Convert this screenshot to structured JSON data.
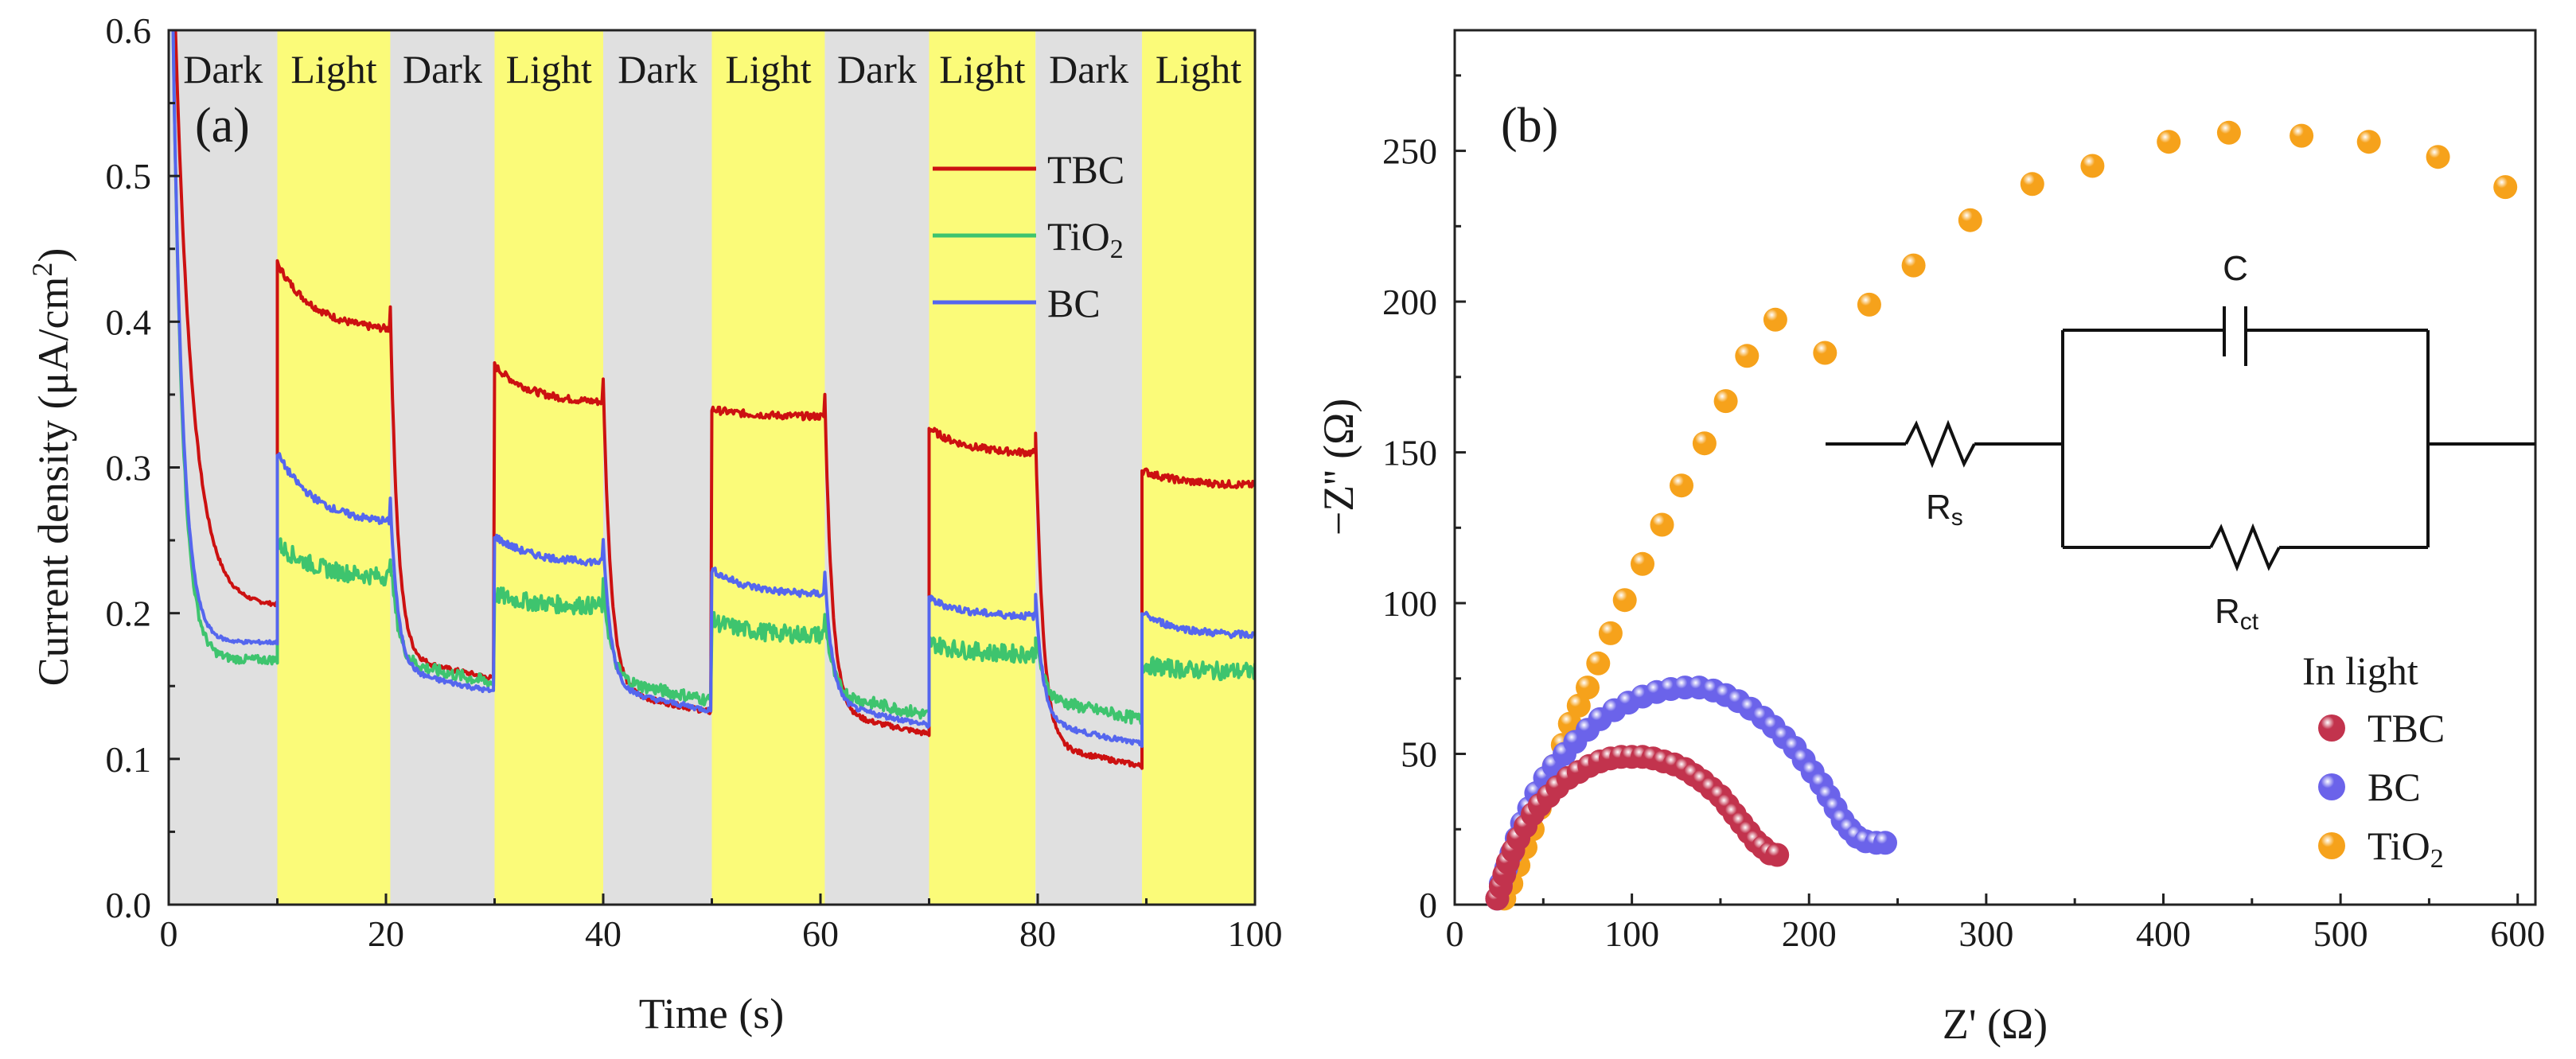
{
  "chart_data": [
    {
      "type": "line",
      "panel_label": "(a)",
      "xlabel": "Time (s)",
      "ylabel": "Current density (μA/cm²)",
      "ylabel_parts": {
        "main": "Current density (μA/cm",
        "sup": "2",
        "end": ")"
      },
      "xlim": [
        0,
        100
      ],
      "ylim": [
        0,
        0.6
      ],
      "xticks": [
        "0",
        "20",
        "40",
        "60",
        "80",
        "100"
      ],
      "xtick_values": [
        0,
        20,
        40,
        60,
        80,
        100
      ],
      "yticks": [
        "0.0",
        "0.1",
        "0.2",
        "0.3",
        "0.4",
        "0.5",
        "0.6"
      ],
      "ytick_values": [
        0,
        0.1,
        0.2,
        0.3,
        0.4,
        0.5,
        0.6
      ],
      "bands": [
        {
          "label": "Dark",
          "start": 0,
          "end": 10,
          "color": "#e0e0e0"
        },
        {
          "label": "Light",
          "start": 10,
          "end": 20.4,
          "color": "#fbfb79"
        },
        {
          "label": "Dark",
          "start": 20.4,
          "end": 30,
          "color": "#e0e0e0"
        },
        {
          "label": "Light",
          "start": 30,
          "end": 40,
          "color": "#fbfb79"
        },
        {
          "label": "Dark",
          "start": 40,
          "end": 50,
          "color": "#e0e0e0"
        },
        {
          "label": "Light",
          "start": 50,
          "end": 60.4,
          "color": "#fbfb79"
        },
        {
          "label": "Dark",
          "start": 60.4,
          "end": 70,
          "color": "#e0e0e0"
        },
        {
          "label": "Light",
          "start": 70,
          "end": 79.8,
          "color": "#fbfb79"
        },
        {
          "label": "Dark",
          "start": 79.8,
          "end": 89.6,
          "color": "#e0e0e0"
        },
        {
          "label": "Light",
          "start": 89.6,
          "end": 100,
          "color": "#fbfb79"
        }
      ],
      "series": [
        {
          "name": "TBC",
          "color": "#cc1111",
          "start_value": 0.6,
          "on": [
            {
              "t_on": 10,
              "t_off": 20.4,
              "peak": 0.44,
              "end": 0.395,
              "dark_end": 0.205
            },
            {
              "t_on": 30,
              "t_off": 40,
              "peak": 0.37,
              "end": 0.345,
              "dark_end": 0.155
            },
            {
              "t_on": 50,
              "t_off": 60.4,
              "peak": 0.34,
              "end": 0.335,
              "dark_end": 0.132
            },
            {
              "t_on": 70,
              "t_off": 79.8,
              "peak": 0.327,
              "end": 0.31,
              "dark_end": 0.117
            },
            {
              "t_on": 89.6,
              "t_off": 100,
              "peak": 0.298,
              "end": 0.288,
              "dark_end": 0.095
            }
          ]
        },
        {
          "name": "TiO2",
          "color": "#3ec46e",
          "start_value": 0.6,
          "on": [
            {
              "t_on": 10,
              "t_off": 20.4,
              "peak": 0.248,
              "end": 0.225,
              "dark_end": 0.168
            },
            {
              "t_on": 30,
              "t_off": 40,
              "peak": 0.213,
              "end": 0.205,
              "dark_end": 0.152
            },
            {
              "t_on": 50,
              "t_off": 60.4,
              "peak": 0.195,
              "end": 0.185,
              "dark_end": 0.14
            },
            {
              "t_on": 70,
              "t_off": 79.8,
              "peak": 0.18,
              "end": 0.172,
              "dark_end": 0.13
            },
            {
              "t_on": 89.6,
              "t_off": 100,
              "peak": 0.165,
              "end": 0.16,
              "dark_end": 0.127
            }
          ]
        },
        {
          "name": "BC",
          "color": "#5566ee",
          "start_value": 0.6,
          "on": [
            {
              "t_on": 10,
              "t_off": 20.4,
              "peak": 0.31,
              "end": 0.263,
              "dark_end": 0.18
            },
            {
              "t_on": 30,
              "t_off": 40,
              "peak": 0.253,
              "end": 0.235,
              "dark_end": 0.146
            },
            {
              "t_on": 50,
              "t_off": 60.4,
              "peak": 0.23,
              "end": 0.213,
              "dark_end": 0.133
            },
            {
              "t_on": 70,
              "t_off": 79.8,
              "peak": 0.21,
              "end": 0.198,
              "dark_end": 0.123
            },
            {
              "t_on": 89.6,
              "t_off": 100,
              "peak": 0.2,
              "end": 0.185,
              "dark_end": 0.11
            }
          ]
        }
      ],
      "legend": [
        {
          "label": "TBC",
          "sub": "",
          "color": "#cc1111"
        },
        {
          "label": "TiO",
          "sub": "2",
          "color": "#3ec46e"
        },
        {
          "label": "BC",
          "sub": "",
          "color": "#5566ee"
        }
      ],
      "legend_position": "upper-right"
    },
    {
      "type": "scatter",
      "panel_label": "(b)",
      "xlabel": "Z' (Ω)",
      "ylabel": "−Z'' (Ω)",
      "xlim": [
        0,
        610
      ],
      "ylim": [
        0,
        290
      ],
      "xticks": [
        "0",
        "100",
        "200",
        "300",
        "400",
        "500",
        "600"
      ],
      "xtick_values": [
        0,
        100,
        200,
        300,
        400,
        500,
        600
      ],
      "yticks": [
        "0",
        "50",
        "100",
        "150",
        "200",
        "250"
      ],
      "ytick_values": [
        0,
        50,
        100,
        150,
        200,
        250
      ],
      "legend_title": "In light",
      "legend": [
        {
          "label": "TBC",
          "sub": "",
          "color": "#c2334d"
        },
        {
          "label": "BC",
          "sub": "",
          "color": "#6b63ea"
        },
        {
          "label": "TiO",
          "sub": "2",
          "color": "#f6a21b"
        }
      ],
      "series": [
        {
          "name": "TBC",
          "color": "#c2334d",
          "points": [
            [
              24,
              2
            ],
            [
              26,
              6
            ],
            [
              28,
              10
            ],
            [
              30,
              14
            ],
            [
              33,
              18
            ],
            [
              36,
              22
            ],
            [
              40,
              26
            ],
            [
              44,
              30
            ],
            [
              48,
              33
            ],
            [
              53,
              36
            ],
            [
              58,
              39
            ],
            [
              64,
              42
            ],
            [
              70,
              44
            ],
            [
              76,
              46
            ],
            [
              82,
              47.5
            ],
            [
              88,
              48.5
            ],
            [
              94,
              49
            ],
            [
              100,
              49
            ],
            [
              106,
              49
            ],
            [
              112,
              48.5
            ],
            [
              118,
              47.5
            ],
            [
              124,
              46.5
            ],
            [
              130,
              45
            ],
            [
              135,
              43
            ],
            [
              140,
              41
            ],
            [
              145,
              38.5
            ],
            [
              150,
              36
            ],
            [
              154,
              33
            ],
            [
              158,
              30
            ],
            [
              162,
              27
            ],
            [
              166,
              24
            ],
            [
              170,
              21
            ],
            [
              174,
              19
            ],
            [
              178,
              17
            ],
            [
              182,
              16.5
            ]
          ]
        },
        {
          "name": "BC",
          "color": "#6b63ea",
          "points": [
            [
              24,
              2
            ],
            [
              26,
              7
            ],
            [
              29,
              12
            ],
            [
              32,
              17
            ],
            [
              35,
              22
            ],
            [
              38,
              27
            ],
            [
              42,
              32
            ],
            [
              46,
              37
            ],
            [
              51,
              42
            ],
            [
              56,
              46
            ],
            [
              62,
              50
            ],
            [
              68,
              54
            ],
            [
              75,
              58
            ],
            [
              82,
              61.5
            ],
            [
              90,
              64.5
            ],
            [
              98,
              67
            ],
            [
              106,
              69
            ],
            [
              114,
              70.5
            ],
            [
              122,
              71.5
            ],
            [
              130,
              72
            ],
            [
              138,
              72
            ],
            [
              146,
              71
            ],
            [
              153,
              69.5
            ],
            [
              160,
              67.5
            ],
            [
              167,
              65
            ],
            [
              174,
              62
            ],
            [
              180,
              59
            ],
            [
              186,
              55.5
            ],
            [
              192,
              52
            ],
            [
              197,
              48
            ],
            [
              202,
              44
            ],
            [
              207,
              40
            ],
            [
              211,
              36
            ],
            [
              215,
              32
            ],
            [
              219,
              28
            ],
            [
              223,
              25
            ],
            [
              227,
              22.5
            ],
            [
              232,
              21
            ],
            [
              238,
              20.5
            ],
            [
              243,
              20.5
            ]
          ]
        },
        {
          "name": "TiO2",
          "color": "#f6a21b",
          "points": [
            [
              28,
              2
            ],
            [
              32,
              7
            ],
            [
              36,
              13
            ],
            [
              40,
              19
            ],
            [
              44,
              25
            ],
            [
              48,
              32
            ],
            [
              52,
              39
            ],
            [
              56,
              46
            ],
            [
              61,
              53
            ],
            [
              65,
              60
            ],
            [
              70,
              66
            ],
            [
              75,
              72
            ],
            [
              81,
              80
            ],
            [
              88,
              90
            ],
            [
              96,
              101
            ],
            [
              106,
              113
            ],
            [
              117,
              126
            ],
            [
              128,
              139
            ],
            [
              141,
              153
            ],
            [
              153,
              167
            ],
            [
              165,
              182
            ],
            [
              181,
              194
            ],
            [
              209,
              183
            ],
            [
              234,
              199
            ],
            [
              259,
              212
            ],
            [
              291,
              227
            ],
            [
              326,
              239
            ],
            [
              360,
              245
            ],
            [
              403,
              253
            ],
            [
              437,
              256
            ],
            [
              478,
              255
            ],
            [
              516,
              253
            ],
            [
              555,
              248
            ],
            [
              593,
              238
            ]
          ]
        }
      ],
      "circuit": {
        "labels": {
          "rs": "R",
          "rs_sub": "s",
          "rct": "R",
          "rct_sub": "ct",
          "c": "C"
        }
      }
    }
  ]
}
